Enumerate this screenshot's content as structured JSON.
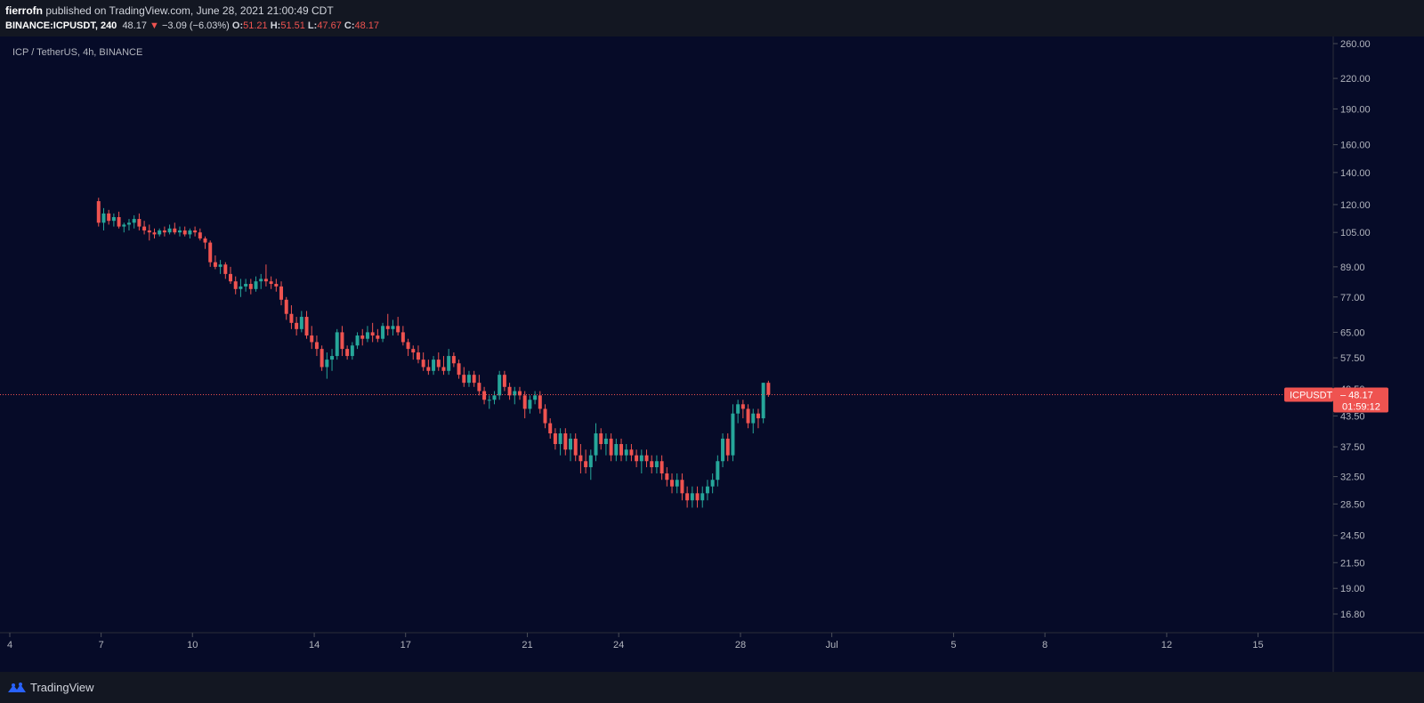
{
  "header": {
    "author": "fierrofn",
    "published_text": "published on TradingView.com, June 28, 2021 21:00:49 CDT",
    "symbol": "BINANCE:ICPUSDT, 240",
    "last": "48.17",
    "change": "−3.09 (−6.03%)",
    "open_label": "O:",
    "open": "51.21",
    "high_label": "H:",
    "high": "51.51",
    "low_label": "L:",
    "low": "47.67",
    "close_label": "C:",
    "close": "48.17"
  },
  "footer": {
    "brand": "TradingView"
  },
  "colors": {
    "background": "#060b28",
    "up": "#26a69a",
    "down": "#ef5350",
    "axis_text": "#b2b5be",
    "price_line": "#ef5350"
  },
  "chart_data": {
    "type": "candlestick",
    "title": "ICP / TetherUS, 4h, BINANCE",
    "y_scale": "log",
    "y_ticks": [
      "260.00",
      "220.00",
      "190.00",
      "160.00",
      "140.00",
      "120.00",
      "105.00",
      "89.00",
      "77.00",
      "65.00",
      "57.50",
      "49.50",
      "43.50",
      "37.50",
      "32.50",
      "28.50",
      "24.50",
      "21.50",
      "19.00",
      "16.80"
    ],
    "x_ticks": [
      "4",
      "7",
      "10",
      "14",
      "17",
      "21",
      "24",
      "28",
      "Jul",
      "5",
      "8",
      "12",
      "15"
    ],
    "x_tick_days": [
      4,
      7,
      10,
      14,
      17,
      21,
      24,
      28,
      31,
      35,
      38,
      42,
      45
    ],
    "last_price": {
      "symbol": "ICPUSDT",
      "value": "48.17",
      "countdown": "01:59:12"
    },
    "candles_4h": [
      [
        122,
        124,
        108,
        110
      ],
      [
        110,
        118,
        106,
        115
      ],
      [
        115,
        117,
        109,
        111
      ],
      [
        111,
        115,
        108,
        113
      ],
      [
        113,
        116,
        107,
        108
      ],
      [
        108,
        110,
        105,
        109
      ],
      [
        109,
        112,
        106,
        110
      ],
      [
        110,
        114,
        107,
        112
      ],
      [
        112,
        115,
        106,
        108
      ],
      [
        108,
        111,
        104,
        106
      ],
      [
        106,
        109,
        101,
        105
      ],
      [
        105,
        107,
        102,
        104
      ],
      [
        104,
        107,
        103,
        106
      ],
      [
        106,
        108,
        103,
        105
      ],
      [
        105,
        109,
        104,
        107
      ],
      [
        107,
        110,
        104,
        105
      ],
      [
        105,
        108,
        103,
        106
      ],
      [
        106,
        108,
        103,
        104
      ],
      [
        104,
        107,
        102,
        106
      ],
      [
        106,
        108,
        103,
        105
      ],
      [
        105,
        107,
        101,
        102
      ],
      [
        102,
        103,
        97,
        100
      ],
      [
        100,
        101,
        89,
        91
      ],
      [
        91,
        94,
        88,
        89
      ],
      [
        89,
        92,
        86,
        90
      ],
      [
        90,
        91,
        84,
        86
      ],
      [
        86,
        89,
        82,
        83
      ],
      [
        83,
        85,
        78,
        80
      ],
      [
        80,
        84,
        77,
        81
      ],
      [
        81,
        84,
        79,
        82
      ],
      [
        82,
        84,
        78,
        80
      ],
      [
        80,
        85,
        79,
        83
      ],
      [
        83,
        86,
        80,
        84
      ],
      [
        84,
        90,
        81,
        83
      ],
      [
        83,
        85,
        80,
        82
      ],
      [
        82,
        84,
        79,
        81
      ],
      [
        81,
        83,
        74,
        76
      ],
      [
        76,
        77,
        69,
        71
      ],
      [
        71,
        74,
        66,
        68
      ],
      [
        68,
        70,
        64,
        66
      ],
      [
        66,
        72,
        65,
        70
      ],
      [
        70,
        72,
        63,
        64
      ],
      [
        64,
        67,
        60,
        62
      ],
      [
        62,
        64,
        58,
        60
      ],
      [
        60,
        61,
        54,
        55
      ],
      [
        55,
        59,
        52,
        57
      ],
      [
        57,
        60,
        54,
        58
      ],
      [
        58,
        66,
        57,
        65
      ],
      [
        65,
        67,
        58,
        60
      ],
      [
        60,
        61,
        57,
        58
      ],
      [
        58,
        62,
        57,
        61
      ],
      [
        61,
        65,
        60,
        64
      ],
      [
        64,
        66,
        61,
        63
      ],
      [
        63,
        67,
        62,
        65
      ],
      [
        65,
        68,
        62,
        64
      ],
      [
        64,
        66,
        62,
        63
      ],
      [
        63,
        68,
        62,
        67
      ],
      [
        67,
        71,
        64,
        66
      ],
      [
        66,
        69,
        64,
        67
      ],
      [
        67,
        70,
        64,
        65
      ],
      [
        65,
        67,
        61,
        62
      ],
      [
        62,
        63,
        58,
        60
      ],
      [
        60,
        61,
        57,
        59
      ],
      [
        59,
        61,
        56,
        57
      ],
      [
        57,
        59,
        54,
        55
      ],
      [
        55,
        57,
        53,
        54
      ],
      [
        54,
        58,
        53,
        57
      ],
      [
        57,
        59,
        54,
        55
      ],
      [
        55,
        58,
        53,
        54
      ],
      [
        54,
        60,
        53,
        58
      ],
      [
        58,
        59,
        55,
        56
      ],
      [
        56,
        57,
        52,
        53
      ],
      [
        53,
        55,
        50,
        51
      ],
      [
        51,
        54,
        50,
        53
      ],
      [
        53,
        54,
        50,
        51
      ],
      [
        51,
        53,
        48,
        49
      ],
      [
        49,
        50,
        46,
        47
      ],
      [
        47,
        48,
        45,
        47
      ],
      [
        47,
        49,
        46,
        48
      ],
      [
        48,
        54,
        47,
        53
      ],
      [
        53,
        54,
        49,
        50
      ],
      [
        50,
        51,
        47,
        48
      ],
      [
        48,
        50,
        46,
        49
      ],
      [
        49,
        50,
        47,
        48
      ],
      [
        48,
        49,
        43,
        45
      ],
      [
        45,
        48,
        44,
        47
      ],
      [
        47,
        49,
        46,
        48
      ],
      [
        48,
        49,
        44,
        45
      ],
      [
        45,
        46,
        41,
        42
      ],
      [
        42,
        43,
        39,
        40
      ],
      [
        40,
        41,
        37,
        38
      ],
      [
        38,
        41,
        36,
        40
      ],
      [
        40,
        41,
        36,
        37
      ],
      [
        37,
        40,
        35,
        39
      ],
      [
        39,
        40,
        35,
        36
      ],
      [
        36,
        38,
        33,
        35
      ],
      [
        35,
        37,
        33,
        34
      ],
      [
        34,
        37,
        32,
        36
      ],
      [
        36,
        42,
        35,
        40
      ],
      [
        40,
        41,
        37,
        38
      ],
      [
        38,
        40,
        36,
        39
      ],
      [
        39,
        40,
        35,
        36
      ],
      [
        36,
        39,
        35,
        38
      ],
      [
        38,
        39,
        35,
        36
      ],
      [
        36,
        38,
        35,
        37
      ],
      [
        37,
        38,
        35,
        36
      ],
      [
        36,
        37,
        34,
        35
      ],
      [
        35,
        37,
        33,
        36
      ],
      [
        36,
        37,
        34,
        35
      ],
      [
        35,
        36,
        33,
        34
      ],
      [
        34,
        36,
        33,
        35
      ],
      [
        35,
        36,
        32,
        33
      ],
      [
        33,
        34,
        31,
        32
      ],
      [
        32,
        33,
        30,
        31
      ],
      [
        31,
        33,
        30,
        32
      ],
      [
        32,
        33,
        29,
        30
      ],
      [
        30,
        31,
        28,
        29
      ],
      [
        29,
        31,
        28,
        30
      ],
      [
        30,
        31,
        28,
        29
      ],
      [
        29,
        31,
        28,
        30
      ],
      [
        30,
        32,
        29,
        31
      ],
      [
        31,
        33,
        30,
        32
      ],
      [
        32,
        36,
        31,
        35
      ],
      [
        35,
        40,
        34,
        39
      ],
      [
        39,
        40,
        35,
        36
      ],
      [
        36,
        46,
        35,
        44
      ],
      [
        44,
        47,
        42,
        46
      ],
      [
        46,
        47,
        43,
        45
      ],
      [
        45,
        46,
        41,
        42
      ],
      [
        42,
        45,
        40,
        44
      ],
      [
        44,
        45,
        41,
        43
      ],
      [
        43,
        51,
        42,
        51
      ],
      [
        51,
        51.51,
        47.67,
        48.17
      ]
    ]
  }
}
